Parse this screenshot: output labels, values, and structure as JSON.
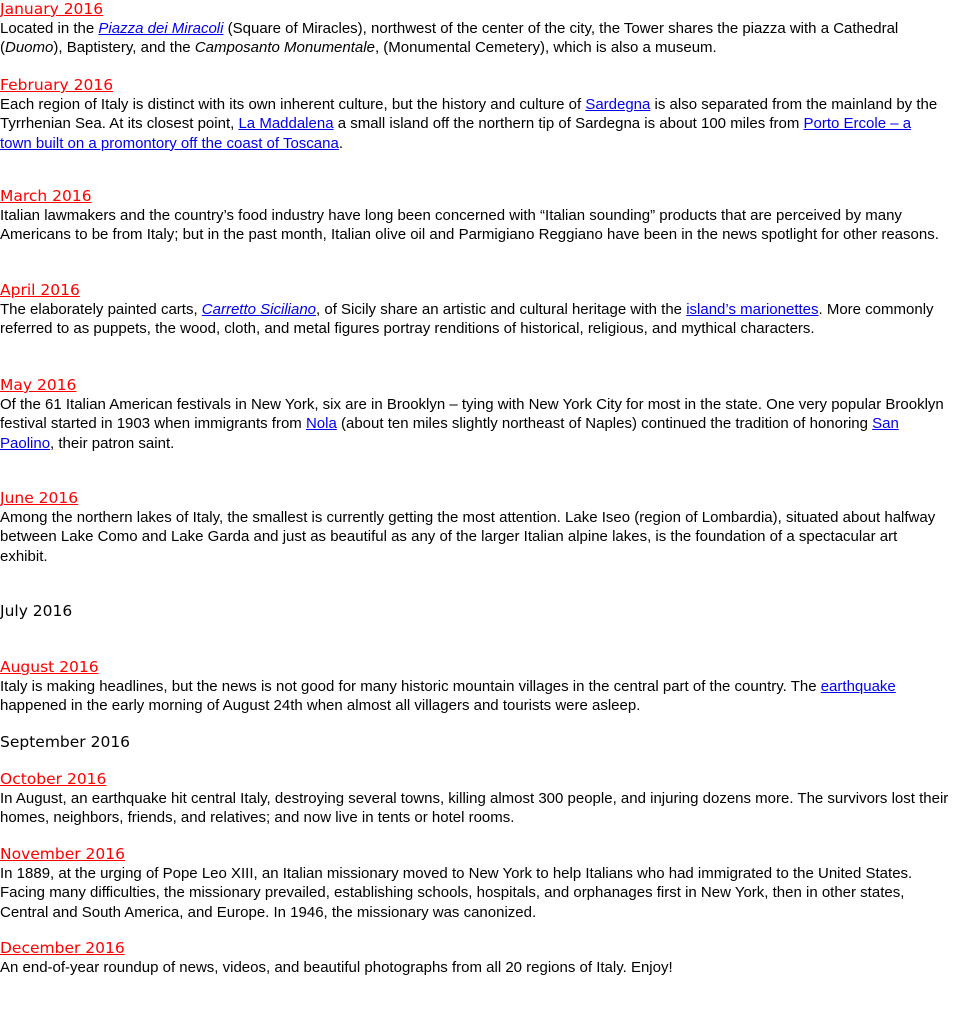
{
  "colors": {
    "month_link": "#ff0000",
    "body_link": "#0000ee",
    "text": "#000000"
  },
  "entries": [
    {
      "month": "January 2016",
      "lines": [
        [
          " Located in the ",
          {
            "t": "Piazza dei Miracoli",
            "link": true,
            "it": true
          },
          " (Square of Miracles), northwest of the center of the city, the Tower shares the piazza with a Cathedral"
        ],
        [
          "(",
          {
            "t": "Duomo",
            "it": true
          },
          "), Baptistery, and the ",
          {
            "t": "Camposanto Monumentale",
            "it": true
          },
          ", (Monumental Cemetery), which is also a museum."
        ]
      ]
    },
    {
      "month": "February 2016",
      "lines": [
        [
          " Each region of Italy is distinct with its own inherent culture, but the history and culture of ",
          {
            "t": "Sardegna",
            "link": true
          },
          " is also separated from the mainland by the"
        ],
        [
          "Tyrrhenian Sea. At its closest point, ",
          {
            "t": "La Maddalena",
            "link": true
          },
          " a small island off the northern tip of Sardegna is about 100 miles from ",
          {
            "t": "Porto Ercole – a",
            "link": true
          }
        ],
        [
          {
            "t": "town built on a promontory off the coast of Toscana",
            "link": true
          },
          "."
        ]
      ]
    },
    {
      "month": "March 2016",
      "lines": [
        [
          " Italian lawmakers and the country’s food industry have long been concerned with “Italian sounding” products that are perceived by many"
        ],
        [
          "Americans to be from Italy; but in the past month, Italian olive oil and Parmigiano Reggiano have been in the news spotlight for other reasons."
        ]
      ]
    },
    {
      "month": "April 2016",
      "lines": [
        [
          " The elaborately painted carts, ",
          {
            "t": "Carretto Siciliano",
            "link": true,
            "it": true
          },
          ", of Sicily share an artistic and cultural heritage with the ",
          {
            "t": "island’s marionettes",
            "link": true
          },
          ". More commonly"
        ],
        [
          "referred to as puppets, the wood, cloth, and metal figures portray renditions of historical, religious, and mythical characters."
        ]
      ]
    },
    {
      "month": "May 2016",
      "lines": [
        [
          " Of the 61 Italian American festivals in New York, six are in Brooklyn – tying with New York City for most in the state. One very popular Brooklyn"
        ],
        [
          "festival started in 1903 when immigrants from ",
          {
            "t": "Nola",
            "link": true
          },
          " (about ten miles slightly northeast of Naples) continued the tradition of honoring ",
          {
            "t": "San",
            "link": true
          }
        ],
        [
          {
            "t": "Paolino",
            "link": true
          },
          ", their patron saint."
        ]
      ]
    },
    {
      "month": "June 2016",
      "lines": [
        [
          " Among the northern lakes of Italy, the smallest is currently getting the most attention. Lake Iseo (region of Lombardia), situated about halfway"
        ],
        [
          "between Lake Como and Lake Garda and just as beautiful as any of the larger Italian alpine lakes, is the foundation of a spectacular art"
        ],
        [
          "exhibit."
        ]
      ]
    },
    {
      "month": "July 2016",
      "plain": true,
      "lines": []
    },
    {
      "month": "August 2016",
      "lines": [
        [
          " Italy is making headlines, but the news is not good for many historic mountain villages in the central part of the country. The ",
          {
            "t": "earthquake",
            "link": true
          }
        ],
        [
          "happened in the early morning of August 24th when almost all villagers and tourists were asleep."
        ]
      ]
    },
    {
      "month": "September 2016",
      "plain": true,
      "lines": []
    },
    {
      "month": "October 2016",
      "lines": [
        [
          " In August, an earthquake hit central Italy, destroying several towns, killing almost 300 people, and injuring dozens more. The survivors lost their"
        ],
        [
          "homes, neighbors, friends, and relatives; and now live in tents or hotel rooms."
        ]
      ]
    },
    {
      "month": "November 2016",
      "lines": [
        [
          " In 1889, at the urging of Pope Leo XIII, an Italian missionary moved to New York to help Italians who had immigrated to the United States."
        ],
        [
          "Facing many difficulties, the missionary prevailed, establishing schools, hospitals, and orphanages first in New York, then in other states,"
        ],
        [
          "Central and South America, and Europe. In 1946, the missionary was canonized."
        ]
      ]
    },
    {
      "month": "December 2016",
      "lines": [
        [
          "  An end-of-year roundup of news, videos, and beautiful photographs from all 20 regions of Italy. Enjoy!"
        ]
      ]
    }
  ]
}
